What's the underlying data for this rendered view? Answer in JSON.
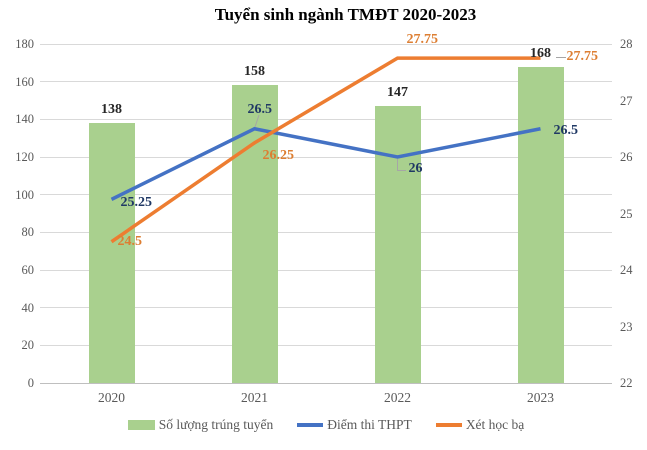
{
  "chart_data": {
    "type": "combo-bar-line",
    "title": "Tuyển sinh ngành TMĐT 2020-2023",
    "categories": [
      "2020",
      "2021",
      "2022",
      "2023"
    ],
    "series": [
      {
        "name": "Số lượng trúng tuyển",
        "type": "bar",
        "axis": "left",
        "color": "#A9D08E",
        "values": [
          138,
          158,
          147,
          168
        ]
      },
      {
        "name": "Điểm thi THPT",
        "type": "line",
        "axis": "right",
        "color": "#4472C4",
        "label_color": "#1F3864",
        "values": [
          25.25,
          26.5,
          26,
          26.5
        ]
      },
      {
        "name": "Xét học bạ",
        "type": "line",
        "axis": "right",
        "color": "#ED7D31",
        "label_color": "#DD7E32",
        "values": [
          24.5,
          26.25,
          27.75,
          27.75
        ]
      }
    ],
    "left_axis": {
      "min": 0,
      "max": 180,
      "step": 20,
      "ticks": [
        0,
        20,
        40,
        60,
        80,
        100,
        120,
        140,
        160,
        180
      ]
    },
    "right_axis": {
      "min": 22,
      "max": 28,
      "step": 1,
      "ticks": [
        22,
        23,
        24,
        25,
        26,
        27,
        28
      ]
    },
    "grid": "horizontal",
    "legend_position": "bottom"
  },
  "colors": {
    "background": "#FFFFFF",
    "bar": "#A9D08E",
    "line_blue": "#4472C4",
    "line_orange": "#ED7D31",
    "gridline": "#D9D9D9",
    "axis_line": "#BFBFBF",
    "tick_label": "#595959",
    "bar_label": "#262626",
    "blue_label": "#1F3864",
    "orange_label": "#DD7E32",
    "leader_line": "#A6A6A6"
  }
}
